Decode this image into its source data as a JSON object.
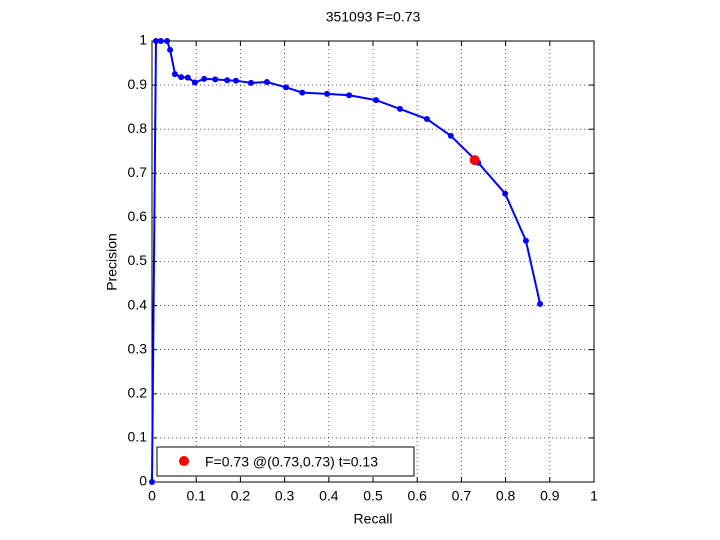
{
  "chart_data": {
    "type": "line",
    "title": "351093 F=0.73",
    "x_label": "Recall",
    "y_label": "Precision",
    "x": [
      0,
      0.009,
      0.02,
      0.034,
      0.041,
      0.052,
      0.066,
      0.081,
      0.097,
      0.118,
      0.143,
      0.17,
      0.19,
      0.224,
      0.26,
      0.303,
      0.34,
      0.396,
      0.446,
      0.507,
      0.561,
      0.622,
      0.676,
      0.738,
      0.799,
      0.846,
      0.878
    ],
    "series": [
      {
        "color": "#0000ff",
        "values": [
          0,
          1.0,
          1.0,
          1.0,
          0.98,
          0.925,
          0.918,
          0.917,
          0.906,
          0.914,
          0.913,
          0.911,
          0.91,
          0.905,
          0.907,
          0.895,
          0.883,
          0.88,
          0.877,
          0.866,
          0.846,
          0.823,
          0.785,
          0.724,
          0.654,
          0.547,
          0.404
        ]
      }
    ],
    "best": {
      "x": 0.73,
      "y": 0.73,
      "color": "#ff0000",
      "label": "F=0.73 @(0.73,0.73) t=0.13"
    },
    "xlim": [
      0,
      1
    ],
    "ylim": [
      0,
      1
    ],
    "xticks": [
      0,
      0.1,
      0.2,
      0.3,
      0.4,
      0.5,
      0.6,
      0.7,
      0.8,
      0.9,
      1
    ],
    "yticks": [
      0,
      0.1,
      0.2,
      0.3,
      0.4,
      0.5,
      0.6,
      0.7,
      0.8,
      0.9,
      1
    ],
    "grid": true
  }
}
